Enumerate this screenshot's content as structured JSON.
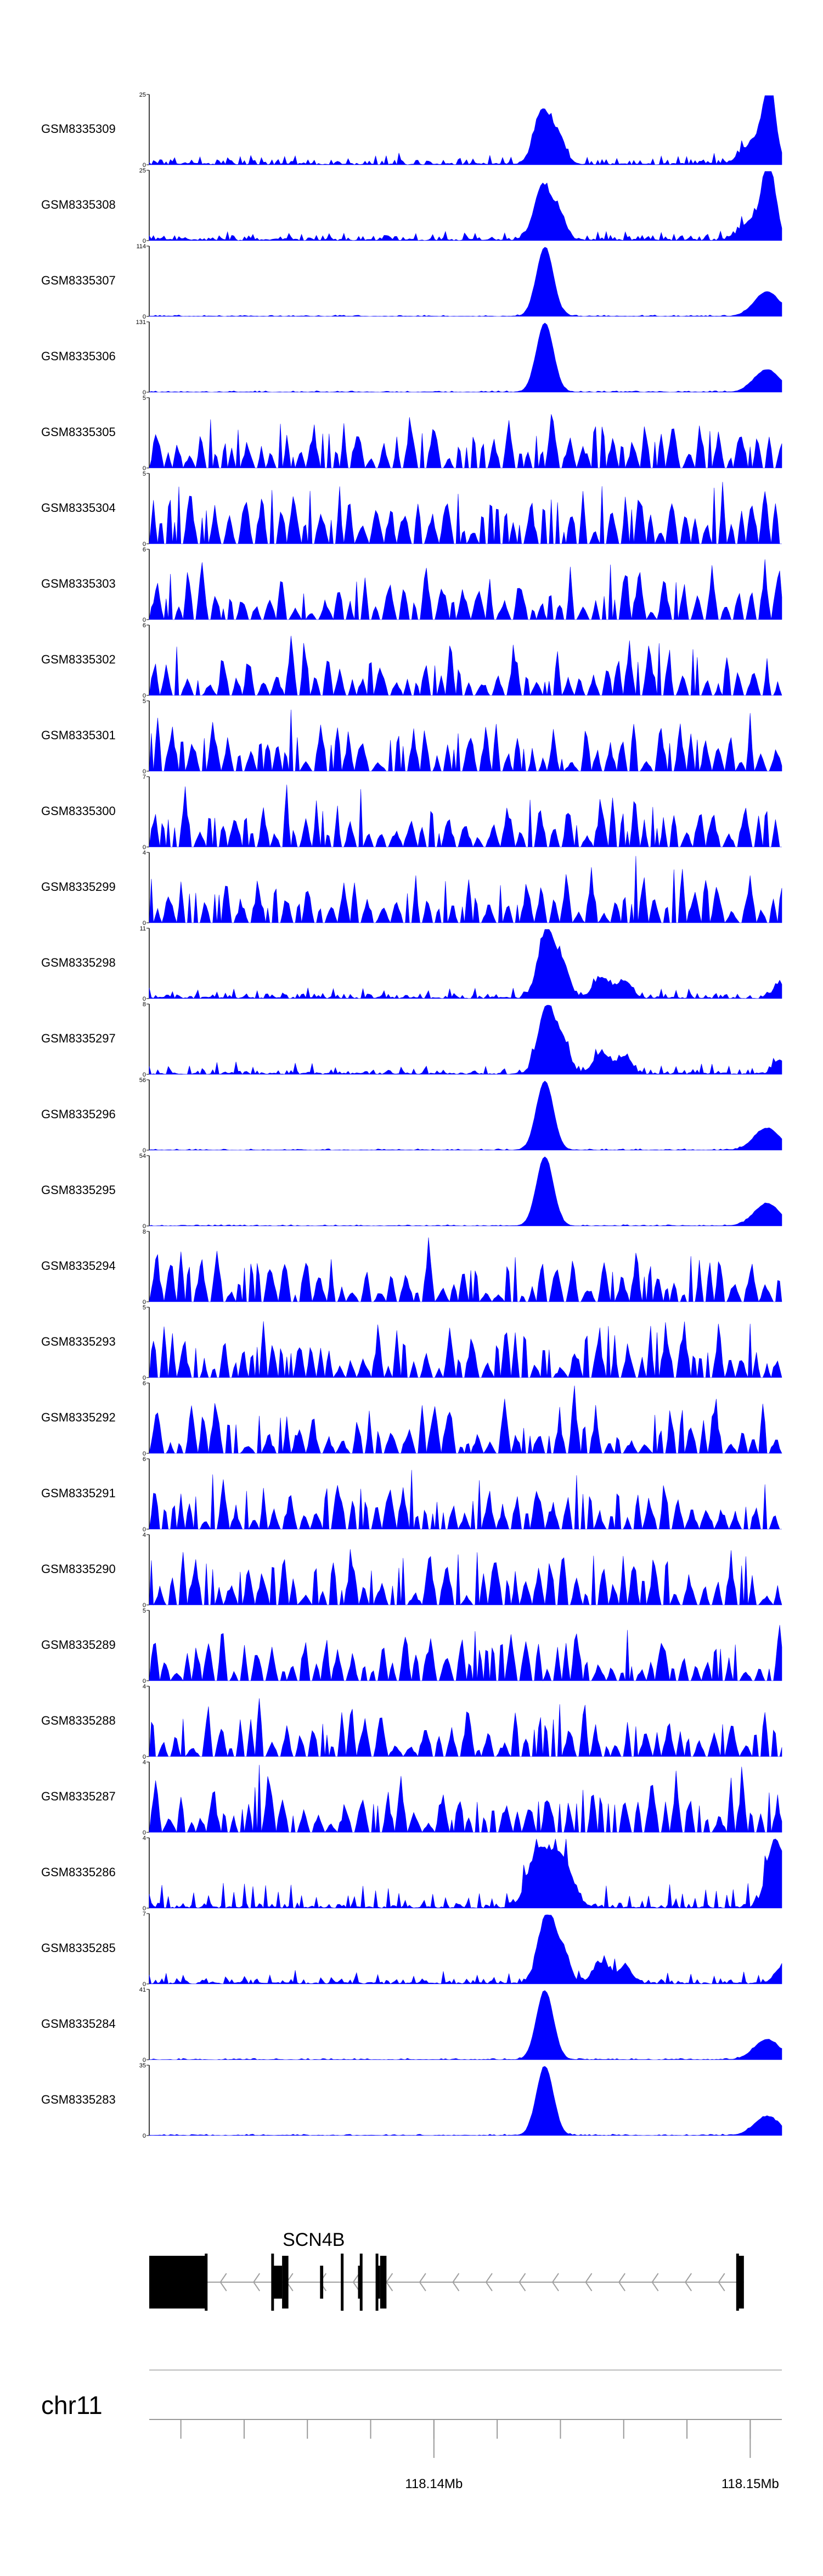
{
  "chart_data": {
    "type": "area",
    "color": "#0000ff",
    "tracks": [
      {
        "name": "GSM8335309",
        "ymax": "25",
        "ymin": "0",
        "profile": "peak_high",
        "seed": 309
      },
      {
        "name": "GSM8335308",
        "ymax": "25",
        "ymin": "0",
        "profile": "peak_high",
        "seed": 308
      },
      {
        "name": "GSM8335307",
        "ymax": "114",
        "ymin": "0",
        "profile": "sharp",
        "seed": 307
      },
      {
        "name": "GSM8335306",
        "ymax": "131",
        "ymin": "0",
        "profile": "sharp",
        "seed": 306
      },
      {
        "name": "GSM8335305",
        "ymax": "5",
        "ymin": "0",
        "profile": "noise",
        "seed": 305
      },
      {
        "name": "GSM8335304",
        "ymax": "5",
        "ymin": "0",
        "profile": "noise",
        "seed": 304
      },
      {
        "name": "GSM8335303",
        "ymax": "6",
        "ymin": "0",
        "profile": "noise",
        "seed": 303
      },
      {
        "name": "GSM8335302",
        "ymax": "6",
        "ymin": "0",
        "profile": "noise",
        "seed": 302
      },
      {
        "name": "GSM8335301",
        "ymax": "5",
        "ymin": "0",
        "profile": "noise",
        "seed": 301
      },
      {
        "name": "GSM8335300",
        "ymax": "7",
        "ymin": "0",
        "profile": "noise",
        "seed": 300
      },
      {
        "name": "GSM8335299",
        "ymax": "4",
        "ymin": "0",
        "profile": "noise",
        "seed": 299
      },
      {
        "name": "GSM8335298",
        "ymax": "11",
        "ymin": "0",
        "profile": "peak_mid",
        "seed": 298
      },
      {
        "name": "GSM8335297",
        "ymax": "8",
        "ymin": "0",
        "profile": "peak_mid",
        "seed": 297
      },
      {
        "name": "GSM8335296",
        "ymax": "56",
        "ymin": "0",
        "profile": "sharp",
        "seed": 296
      },
      {
        "name": "GSM8335295",
        "ymax": "54",
        "ymin": "0",
        "profile": "sharp",
        "seed": 295
      },
      {
        "name": "GSM8335294",
        "ymax": "8",
        "ymin": "0",
        "profile": "noise",
        "seed": 294
      },
      {
        "name": "GSM8335293",
        "ymax": "5",
        "ymin": "0",
        "profile": "noise",
        "seed": 293
      },
      {
        "name": "GSM8335292",
        "ymax": "6",
        "ymin": "0",
        "profile": "noise",
        "seed": 292
      },
      {
        "name": "GSM8335291",
        "ymax": "6",
        "ymin": "0",
        "profile": "noise",
        "seed": 291
      },
      {
        "name": "GSM8335290",
        "ymax": "4",
        "ymin": "0",
        "profile": "noise",
        "seed": 290
      },
      {
        "name": "GSM8335289",
        "ymax": "5",
        "ymin": "0",
        "profile": "noise",
        "seed": 289
      },
      {
        "name": "GSM8335288",
        "ymax": "4",
        "ymin": "0",
        "profile": "noise",
        "seed": 288
      },
      {
        "name": "GSM8335287",
        "ymax": "4",
        "ymin": "0",
        "profile": "noise",
        "seed": 287
      },
      {
        "name": "GSM8335286",
        "ymax": "4",
        "ymin": "0",
        "profile": "peak_low",
        "seed": 286
      },
      {
        "name": "GSM8335285",
        "ymax": "7",
        "ymin": "0",
        "profile": "peak_mid",
        "seed": 285
      },
      {
        "name": "GSM8335284",
        "ymax": "41",
        "ymin": "0",
        "profile": "sharp",
        "seed": 284
      },
      {
        "name": "GSM8335283",
        "ymax": "35",
        "ymin": "0",
        "profile": "sharp",
        "seed": 283
      }
    ],
    "gene": {
      "name": "SCN4B",
      "strand": "-",
      "exons_mb": [
        [
          118.131,
          118.1328
        ],
        [
          118.1349,
          118.1352
        ],
        [
          118.1352,
          118.1354
        ],
        [
          118.1364,
          118.1365
        ],
        [
          118.1376,
          118.1377
        ],
        [
          118.1382,
          118.1383
        ],
        [
          118.1383,
          118.1385
        ],
        [
          118.1496,
          118.1498
        ]
      ],
      "start_mb": 118.131,
      "end_mb": 118.1498
    },
    "chromosome": "chr11",
    "x_range_mb": [
      118.131,
      118.151
    ],
    "x_ticks_labeled": [
      {
        "value": 118.14,
        "label": "118.14Mb"
      },
      {
        "value": 118.15,
        "label": "118.15Mb"
      }
    ],
    "x_minor_tick_step_mb": 0.002
  }
}
